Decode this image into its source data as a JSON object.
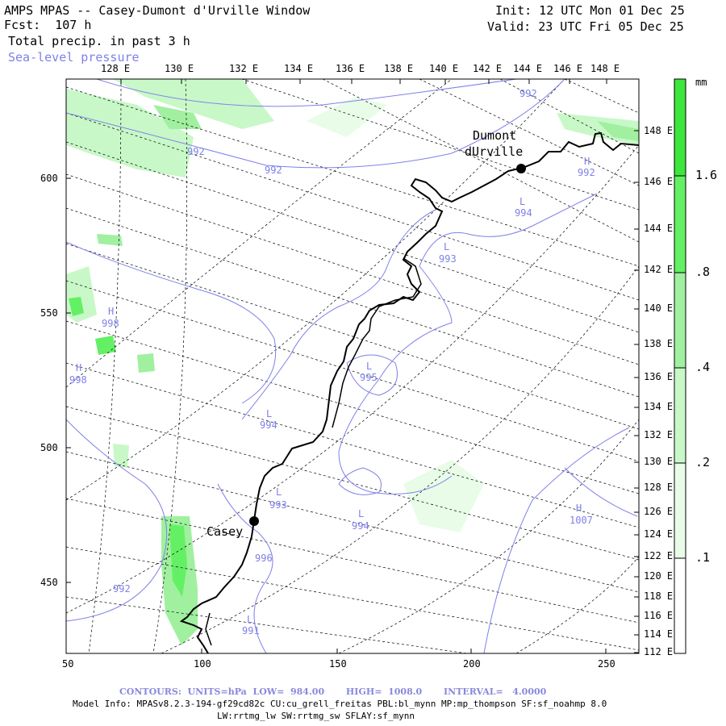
{
  "header": {
    "title": "AMPS MPAS -- Casey-Dumont d'Urville Window",
    "forecast": "Fcst:  107 h",
    "field": "Total precip. in past 3 h",
    "overlay": "Sea-level pressure",
    "init": "Init: 12 UTC Mon 01 Dec 25",
    "valid": "Valid: 23 UTC Fri 05 Dec 25"
  },
  "top_axis": [
    "128 E",
    "130 E",
    "132 E",
    "134 E",
    "136 E",
    "138 E",
    "140 E",
    "142 E",
    "144 E",
    "146 E",
    "148 E"
  ],
  "right_axis": [
    "148 E",
    "146 E",
    "144 E",
    "142 E",
    "140 E",
    "138 E",
    "136 E",
    "134 E",
    "132 E",
    "130 E",
    "128 E",
    "126 E",
    "124 E",
    "122 E",
    "120 E",
    "118 E",
    "116 E",
    "114 E",
    "112 E"
  ],
  "left_axis": [
    "600",
    "550",
    "500",
    "450"
  ],
  "bottom_axis": [
    "50",
    "100",
    "150",
    "200",
    "250"
  ],
  "legend": {
    "unit": "mm",
    "levels": [
      "1.6",
      ".8",
      ".4",
      ".2",
      ".1"
    ],
    "colors": {
      "l1": "#3ce63c",
      "l2": "#64f064",
      "l3": "#a0f0a0",
      "l4": "#c8f8c8",
      "l5": "#e8fce8"
    }
  },
  "places": {
    "dumont": "Dumont",
    "durville": "dUrville",
    "casey": "Casey"
  },
  "isobars": {
    "labels": [
      "992",
      "992",
      "992",
      "992",
      "994",
      "993",
      "995",
      "994",
      "993",
      "994",
      "996",
      "992",
      "991",
      "998",
      "998"
    ],
    "centers": [
      "L",
      "L",
      "L",
      "L",
      "L",
      "L",
      "L",
      "H",
      "H",
      "H",
      "H"
    ]
  },
  "footer": {
    "contours": "CONTOURS:  UNITS=hPa  LOW=  984.00       HIGH=  1008.0       INTERVAL=   4.0000",
    "model_info": "Model Info: MPASv8.2.3-194-gf29cd82c CU:cu_grell_freitas PBL:bl_mynn MP:mp_thompson SF:sf_noahmp 8.0",
    "physics": "LW:rrtmg_lw SW:rrtmg_sw SFLAY:sf_mynn"
  }
}
